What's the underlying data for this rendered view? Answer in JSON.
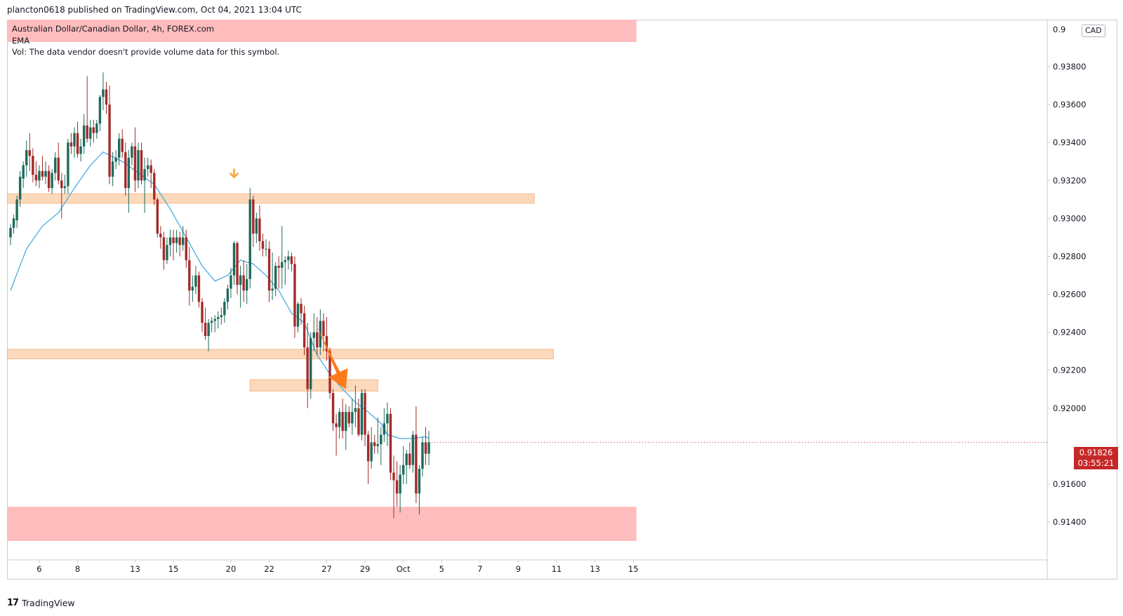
{
  "header": {
    "publish_line": "plancton0618 published on TradingView.com, Oct 04, 2021 13:04 UTC"
  },
  "legend": {
    "symbol_line": "Australian Dollar/Canadian Dollar, 4h, FOREX.com",
    "ema_label": "EMA",
    "vol_line": "Vol: The data vendor doesn't provide volume data for this symbol."
  },
  "price_axis": {
    "currency_badge": "CAD",
    "top_partial_label": "0.9",
    "current_price": "0.91826",
    "countdown": "03:55:21"
  },
  "footer": {
    "brand_mark": "17",
    "brand_name": "TradingView"
  },
  "colors": {
    "up_candle": "#1e6b5c",
    "down_candle": "#a52a2a",
    "ema_line": "#3ea6e0",
    "resistance_zone": "#fcd9bb",
    "extreme_zone": "#ffbcbc",
    "arrow": "#ff7a1a",
    "marker": "#f7a53b",
    "price_label": "#c62828"
  },
  "chart_data": {
    "type": "candlestick",
    "symbol": "Australian Dollar/Canadian Dollar",
    "timeframe": "4h",
    "source": "FOREX.com",
    "y_axis": {
      "range": [
        0.913,
        0.94
      ],
      "ticks": [
        "0.93800",
        "0.93600",
        "0.93400",
        "0.93200",
        "0.93000",
        "0.92800",
        "0.92600",
        "0.92400",
        "0.92200",
        "0.92000",
        "0.91600",
        "0.91400"
      ],
      "tick_values": [
        0.938,
        0.936,
        0.934,
        0.932,
        0.93,
        0.928,
        0.926,
        0.924,
        0.922,
        0.92,
        0.916,
        0.914
      ]
    },
    "x_axis": {
      "labels": [
        "6",
        "8",
        "13",
        "15",
        "20",
        "22",
        "27",
        "29",
        "Oct",
        "5",
        "7",
        "9",
        "11",
        "13",
        "15"
      ],
      "label_bar_index": [
        9,
        21,
        39,
        51,
        69,
        81,
        99,
        111,
        123,
        135,
        147,
        159,
        171,
        183,
        195
      ]
    },
    "zones": [
      {
        "name": "top-extreme-zone",
        "kind": "extreme",
        "from": 0.9393,
        "to": 0.9406,
        "from_bar": -1,
        "to_bar": 196
      },
      {
        "name": "resistance-zone-upper",
        "kind": "level",
        "from": 0.9308,
        "to": 0.9313,
        "from_bar": -1,
        "to_bar": 164
      },
      {
        "name": "resistance-zone-middle",
        "kind": "level",
        "from": 0.9226,
        "to": 0.9231,
        "from_bar": -1,
        "to_bar": 170
      },
      {
        "name": "resistance-zone-lower",
        "kind": "level",
        "from": 0.9209,
        "to": 0.9215,
        "from_bar": 75,
        "to_bar": 115
      },
      {
        "name": "bottom-extreme-zone",
        "kind": "extreme",
        "from": 0.913,
        "to": 0.9148,
        "from_bar": -1,
        "to_bar": 196
      }
    ],
    "annotations": [
      {
        "name": "peak-marker",
        "kind": "down-arrow-marker",
        "bar": 70,
        "price": 0.9321
      },
      {
        "name": "trend-arrow",
        "kind": "arrow",
        "from_bar": 96,
        "from_price": 0.9243,
        "to_bar": 105,
        "to_price": 0.921
      }
    ],
    "ema_points": [
      [
        0,
        0.9262
      ],
      [
        5,
        0.9284
      ],
      [
        10,
        0.9296
      ],
      [
        15,
        0.9303
      ],
      [
        20,
        0.9316
      ],
      [
        25,
        0.9328
      ],
      [
        29,
        0.9335
      ],
      [
        35,
        0.933
      ],
      [
        40,
        0.9324
      ],
      [
        45,
        0.9318
      ],
      [
        50,
        0.9305
      ],
      [
        55,
        0.929
      ],
      [
        60,
        0.9275
      ],
      [
        64,
        0.9267
      ],
      [
        68,
        0.927
      ],
      [
        72,
        0.9278
      ],
      [
        76,
        0.9276
      ],
      [
        80,
        0.927
      ],
      [
        84,
        0.9262
      ],
      [
        88,
        0.925
      ],
      [
        92,
        0.9245
      ],
      [
        96,
        0.9228
      ],
      [
        100,
        0.9218
      ],
      [
        104,
        0.921
      ],
      [
        108,
        0.9203
      ],
      [
        112,
        0.9198
      ],
      [
        116,
        0.9192
      ],
      [
        118,
        0.9186
      ],
      [
        122,
        0.9184
      ],
      [
        126,
        0.9184
      ],
      [
        130,
        0.9185
      ],
      [
        131,
        0.9184
      ]
    ],
    "ohlc": [
      [
        0,
        0.929,
        0.9297,
        0.9286,
        0.9295
      ],
      [
        1,
        0.9295,
        0.9302,
        0.9292,
        0.93
      ],
      [
        2,
        0.9299,
        0.9312,
        0.9295,
        0.931
      ],
      [
        3,
        0.931,
        0.9325,
        0.9306,
        0.9322
      ],
      [
        4,
        0.9321,
        0.933,
        0.9316,
        0.9328
      ],
      [
        5,
        0.9328,
        0.9341,
        0.9322,
        0.9336
      ],
      [
        6,
        0.9336,
        0.9345,
        0.9325,
        0.9333
      ],
      [
        7,
        0.9333,
        0.9337,
        0.9319,
        0.9323
      ],
      [
        8,
        0.9323,
        0.933,
        0.9317,
        0.932
      ],
      [
        9,
        0.932,
        0.9328,
        0.9316,
        0.9325
      ],
      [
        10,
        0.9325,
        0.9333,
        0.932,
        0.9322
      ],
      [
        11,
        0.9322,
        0.933,
        0.9318,
        0.9325
      ],
      [
        12,
        0.9325,
        0.9328,
        0.9314,
        0.9316
      ],
      [
        13,
        0.9316,
        0.9326,
        0.9313,
        0.9324
      ],
      [
        14,
        0.9324,
        0.9335,
        0.932,
        0.9332
      ],
      [
        15,
        0.9332,
        0.934,
        0.9318,
        0.932
      ],
      [
        16,
        0.932,
        0.9324,
        0.93,
        0.9316
      ],
      [
        17,
        0.9316,
        0.9323,
        0.9313,
        0.9317
      ],
      [
        18,
        0.9317,
        0.9342,
        0.9313,
        0.934
      ],
      [
        19,
        0.934,
        0.9345,
        0.9334,
        0.9338
      ],
      [
        20,
        0.9338,
        0.9348,
        0.9332,
        0.9345
      ],
      [
        21,
        0.9345,
        0.9351,
        0.9332,
        0.9334
      ],
      [
        22,
        0.9334,
        0.9342,
        0.933,
        0.9338
      ],
      [
        23,
        0.9338,
        0.9355,
        0.9334,
        0.9349
      ],
      [
        24,
        0.9349,
        0.9375,
        0.934,
        0.9342
      ],
      [
        25,
        0.9342,
        0.9352,
        0.9338,
        0.9348
      ],
      [
        26,
        0.9348,
        0.9352,
        0.934,
        0.9345
      ],
      [
        27,
        0.9345,
        0.9352,
        0.9342,
        0.935
      ],
      [
        28,
        0.935,
        0.9365,
        0.9346,
        0.9364
      ],
      [
        29,
        0.9364,
        0.9377,
        0.9357,
        0.9368
      ],
      [
        30,
        0.9368,
        0.9372,
        0.9355,
        0.936
      ],
      [
        31,
        0.936,
        0.937,
        0.9318,
        0.9322
      ],
      [
        32,
        0.9322,
        0.9335,
        0.9317,
        0.933
      ],
      [
        33,
        0.933,
        0.9336,
        0.9326,
        0.9332
      ],
      [
        34,
        0.9332,
        0.9345,
        0.9328,
        0.9342
      ],
      [
        35,
        0.9342,
        0.9347,
        0.9332,
        0.9335
      ],
      [
        36,
        0.9335,
        0.934,
        0.9312,
        0.9316
      ],
      [
        37,
        0.9316,
        0.9336,
        0.9303,
        0.9332
      ],
      [
        38,
        0.9332,
        0.934,
        0.9328,
        0.9338
      ],
      [
        39,
        0.9338,
        0.9348,
        0.9314,
        0.932
      ],
      [
        40,
        0.932,
        0.934,
        0.9316,
        0.9336
      ],
      [
        41,
        0.9336,
        0.934,
        0.9318,
        0.932
      ],
      [
        42,
        0.932,
        0.9332,
        0.9303,
        0.9326
      ],
      [
        43,
        0.9326,
        0.9332,
        0.9322,
        0.9328
      ],
      [
        44,
        0.9328,
        0.9331,
        0.9316,
        0.9324
      ],
      [
        45,
        0.9324,
        0.9326,
        0.9307,
        0.931
      ],
      [
        46,
        0.931,
        0.9311,
        0.929,
        0.9292
      ],
      [
        47,
        0.9292,
        0.9296,
        0.9284,
        0.929
      ],
      [
        48,
        0.929,
        0.9293,
        0.9273,
        0.9278
      ],
      [
        49,
        0.9278,
        0.929,
        0.9276,
        0.9286
      ],
      [
        50,
        0.9286,
        0.9294,
        0.928,
        0.929
      ],
      [
        51,
        0.929,
        0.9294,
        0.9278,
        0.9287
      ],
      [
        52,
        0.9287,
        0.9294,
        0.9282,
        0.929
      ],
      [
        53,
        0.929,
        0.9293,
        0.928,
        0.9286
      ],
      [
        54,
        0.9286,
        0.9296,
        0.9283,
        0.929
      ],
      [
        55,
        0.929,
        0.9294,
        0.9274,
        0.9278
      ],
      [
        56,
        0.9278,
        0.9285,
        0.9254,
        0.9262
      ],
      [
        57,
        0.9262,
        0.927,
        0.9256,
        0.9264
      ],
      [
        58,
        0.9264,
        0.9275,
        0.926,
        0.927
      ],
      [
        59,
        0.927,
        0.9272,
        0.9253,
        0.9256
      ],
      [
        60,
        0.9256,
        0.9258,
        0.924,
        0.9245
      ],
      [
        61,
        0.9245,
        0.9253,
        0.9236,
        0.9238
      ],
      [
        62,
        0.9238,
        0.9247,
        0.923,
        0.9245
      ],
      [
        63,
        0.9245,
        0.9248,
        0.924,
        0.9246
      ],
      [
        64,
        0.9246,
        0.9249,
        0.924,
        0.9247
      ],
      [
        65,
        0.9247,
        0.9251,
        0.9242,
        0.9248
      ],
      [
        66,
        0.9248,
        0.9253,
        0.9244,
        0.9249
      ],
      [
        67,
        0.9249,
        0.9258,
        0.9245,
        0.9256
      ],
      [
        68,
        0.9256,
        0.9265,
        0.9252,
        0.9263
      ],
      [
        69,
        0.9263,
        0.9274,
        0.9258,
        0.927
      ],
      [
        70,
        0.927,
        0.9288,
        0.9265,
        0.9287
      ],
      [
        71,
        0.9287,
        0.9288,
        0.926,
        0.9265
      ],
      [
        72,
        0.9265,
        0.9275,
        0.9253,
        0.927
      ],
      [
        73,
        0.927,
        0.9278,
        0.9256,
        0.9262
      ],
      [
        74,
        0.9262,
        0.9276,
        0.9255,
        0.9268
      ],
      [
        75,
        0.9268,
        0.9316,
        0.9263,
        0.931
      ],
      [
        76,
        0.931,
        0.9312,
        0.9285,
        0.9292
      ],
      [
        77,
        0.9292,
        0.9303,
        0.9287,
        0.93
      ],
      [
        78,
        0.93,
        0.9307,
        0.9283,
        0.9288
      ],
      [
        79,
        0.9288,
        0.9292,
        0.928,
        0.9284
      ],
      [
        80,
        0.9284,
        0.9289,
        0.928,
        0.9284
      ],
      [
        81,
        0.9284,
        0.9288,
        0.9256,
        0.9262
      ],
      [
        82,
        0.9262,
        0.9282,
        0.9257,
        0.9263
      ],
      [
        83,
        0.9263,
        0.9277,
        0.9259,
        0.9275
      ],
      [
        84,
        0.9275,
        0.928,
        0.9263,
        0.9274
      ],
      [
        85,
        0.9274,
        0.9296,
        0.9263,
        0.9277
      ],
      [
        86,
        0.9277,
        0.928,
        0.9265,
        0.9278
      ],
      [
        87,
        0.9278,
        0.9283,
        0.9273,
        0.928
      ],
      [
        88,
        0.928,
        0.9282,
        0.9272,
        0.9276
      ],
      [
        89,
        0.9276,
        0.928,
        0.9237,
        0.9243
      ],
      [
        90,
        0.9243,
        0.9256,
        0.924,
        0.9255
      ],
      [
        91,
        0.9255,
        0.9258,
        0.9244,
        0.925
      ],
      [
        92,
        0.925,
        0.9254,
        0.9228,
        0.9232
      ],
      [
        93,
        0.9232,
        0.9245,
        0.92,
        0.921
      ],
      [
        94,
        0.921,
        0.924,
        0.9205,
        0.9237
      ],
      [
        95,
        0.9237,
        0.925,
        0.923,
        0.924
      ],
      [
        96,
        0.924,
        0.9248,
        0.9228,
        0.9232
      ],
      [
        97,
        0.9232,
        0.9252,
        0.9228,
        0.9246
      ],
      [
        98,
        0.9246,
        0.925,
        0.923,
        0.9238
      ],
      [
        99,
        0.9238,
        0.9248,
        0.9225,
        0.923
      ],
      [
        100,
        0.923,
        0.9232,
        0.9205,
        0.9208
      ],
      [
        101,
        0.9208,
        0.921,
        0.9188,
        0.9192
      ],
      [
        102,
        0.9192,
        0.9197,
        0.9175,
        0.919
      ],
      [
        103,
        0.919,
        0.92,
        0.9184,
        0.9198
      ],
      [
        104,
        0.9198,
        0.9205,
        0.9184,
        0.9188
      ],
      [
        105,
        0.9188,
        0.9202,
        0.9178,
        0.9198
      ],
      [
        106,
        0.9198,
        0.9201,
        0.919,
        0.9192
      ],
      [
        107,
        0.9192,
        0.9205,
        0.9186,
        0.9198
      ],
      [
        108,
        0.9198,
        0.9212,
        0.919,
        0.92
      ],
      [
        109,
        0.92,
        0.9205,
        0.9185,
        0.9186
      ],
      [
        110,
        0.9186,
        0.921,
        0.9183,
        0.9208
      ],
      [
        111,
        0.9208,
        0.921,
        0.918,
        0.9186
      ],
      [
        112,
        0.9186,
        0.9188,
        0.916,
        0.9172
      ],
      [
        113,
        0.9172,
        0.919,
        0.9168,
        0.9182
      ],
      [
        114,
        0.9182,
        0.9186,
        0.9176,
        0.918
      ],
      [
        115,
        0.918,
        0.9195,
        0.9176,
        0.9181
      ],
      [
        116,
        0.9181,
        0.919,
        0.917,
        0.9186
      ],
      [
        117,
        0.9186,
        0.92,
        0.9182,
        0.9192
      ],
      [
        118,
        0.9192,
        0.9203,
        0.918,
        0.9197
      ],
      [
        119,
        0.9197,
        0.92,
        0.9162,
        0.9166
      ],
      [
        120,
        0.9166,
        0.9175,
        0.9142,
        0.9162
      ],
      [
        121,
        0.9162,
        0.9172,
        0.9148,
        0.9155
      ],
      [
        122,
        0.9155,
        0.917,
        0.9145,
        0.9165
      ],
      [
        123,
        0.9165,
        0.918,
        0.916,
        0.917
      ],
      [
        124,
        0.917,
        0.9178,
        0.916,
        0.9176
      ],
      [
        125,
        0.9176,
        0.9182,
        0.9168,
        0.917
      ],
      [
        126,
        0.917,
        0.9188,
        0.9166,
        0.9186
      ],
      [
        127,
        0.9186,
        0.9201,
        0.915,
        0.9155
      ],
      [
        128,
        0.9155,
        0.917,
        0.9144,
        0.9168
      ],
      [
        129,
        0.9168,
        0.9185,
        0.9164,
        0.9182
      ],
      [
        130,
        0.9182,
        0.919,
        0.917,
        0.9176
      ],
      [
        131,
        0.9176,
        0.9188,
        0.917,
        0.9182
      ]
    ]
  }
}
